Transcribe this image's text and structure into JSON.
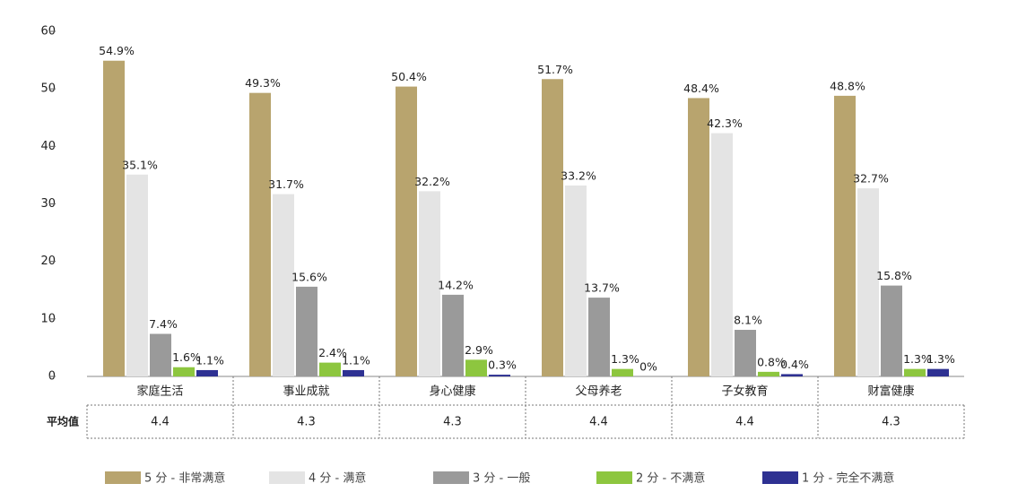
{
  "chart_data": {
    "type": "bar",
    "categories": [
      "家庭生活",
      "事业成就",
      "身心健康",
      "父母养老",
      "子女教育",
      "财富健康"
    ],
    "series": [
      {
        "name": "5 分 - 非常满意",
        "color": "#b8a46e",
        "values": [
          54.9,
          49.3,
          50.4,
          51.7,
          48.4,
          48.8
        ],
        "value_labels": [
          "54.9%",
          "49.3%",
          "50.4%",
          "51.7%",
          "48.4%",
          "48.8%"
        ]
      },
      {
        "name": "4 分 - 满意",
        "color": "#e4e4e4",
        "values": [
          35.1,
          31.7,
          32.2,
          33.2,
          42.3,
          32.7
        ],
        "value_labels": [
          "35.1%",
          "31.7%",
          "32.2%",
          "33.2%",
          "42.3%",
          "32.7%"
        ]
      },
      {
        "name": "3 分 - 一般",
        "color": "#9a9a9a",
        "values": [
          7.4,
          15.6,
          14.2,
          13.7,
          8.1,
          15.8
        ],
        "value_labels": [
          "7.4%",
          "15.6%",
          "14.2%",
          "13.7%",
          "8.1%",
          "15.8%"
        ]
      },
      {
        "name": "2 分 - 不满意",
        "color": "#8dc63f",
        "values": [
          1.6,
          2.4,
          2.9,
          1.3,
          0.8,
          1.3
        ],
        "value_labels": [
          "1.6%",
          "2.4%",
          "2.9%",
          "1.3%",
          "0.8%",
          "1.3%"
        ]
      },
      {
        "name": "1 分 - 完全不满意",
        "color": "#2e3192",
        "values": [
          1.1,
          1.1,
          0.3,
          0,
          0.4,
          1.3
        ],
        "value_labels": [
          "1.1%",
          "1.1%",
          "0.3%",
          "0%",
          "0.4%",
          "1.3%"
        ]
      }
    ],
    "ylim": [
      0,
      60
    ],
    "yticks": [
      0,
      10,
      20,
      30,
      40,
      50,
      60
    ],
    "table_row_label": "平均值",
    "averages": [
      4.4,
      4.3,
      4.3,
      4.4,
      4.4,
      4.3
    ]
  }
}
